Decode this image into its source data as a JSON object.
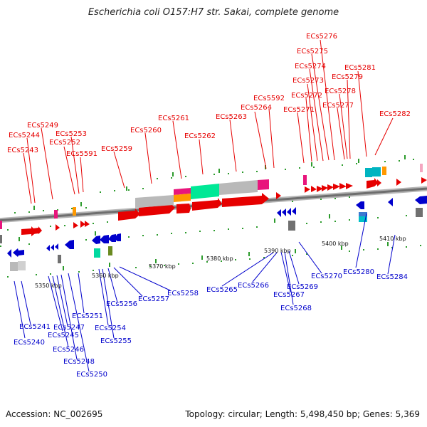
{
  "title": "Escherichia coli O157:H7 str. Sakai, complete genome",
  "footer": {
    "accession": "Accession: NC_002695",
    "info": "Topology: circular; Length: 5,498,450 bp; Genes: 5,369"
  },
  "axis_labels": [
    "5350 kbp",
    "5360 kbp",
    "5370 kbp",
    "5380 kbp",
    "5390 kbp",
    "5400 kbp",
    "5410 kbp"
  ],
  "forward_genes": [
    "ECs5243",
    "ECs5244",
    "ECs5249",
    "ECs5252",
    "ECs5253",
    "ECs5591",
    "ECs5259",
    "ECs5260",
    "ECs5261",
    "ECs5262",
    "ECs5263",
    "ECs5264",
    "ECs5592",
    "ECs5271",
    "ECs5272",
    "ECs5273",
    "ECs5274",
    "ECs5275",
    "ECs5276",
    "ECs5277",
    "ECs5278",
    "ECs5279",
    "ECs5281",
    "ECs5282"
  ],
  "reverse_genes": [
    "ECs5240",
    "ECs5241",
    "ECs5245",
    "ECs5246",
    "ECs5247",
    "ECs5248",
    "ECs5250",
    "ECs5251",
    "ECs5254",
    "ECs5255",
    "ECs5256",
    "ECs5257",
    "ECs5258",
    "ECs5265",
    "ECs5266",
    "ECs5267",
    "ECs5268",
    "ECs5269",
    "ECs5270",
    "ECs5280",
    "ECs5284"
  ],
  "colors": {
    "forward": "#e60000",
    "reverse": "#0000cc",
    "magenta": "#e8157c",
    "orange": "#ff9900",
    "teal": "#00c0c8",
    "green": "#00e896",
    "grey": "#b4b4b4",
    "backbone": "#7a7a7a"
  }
}
